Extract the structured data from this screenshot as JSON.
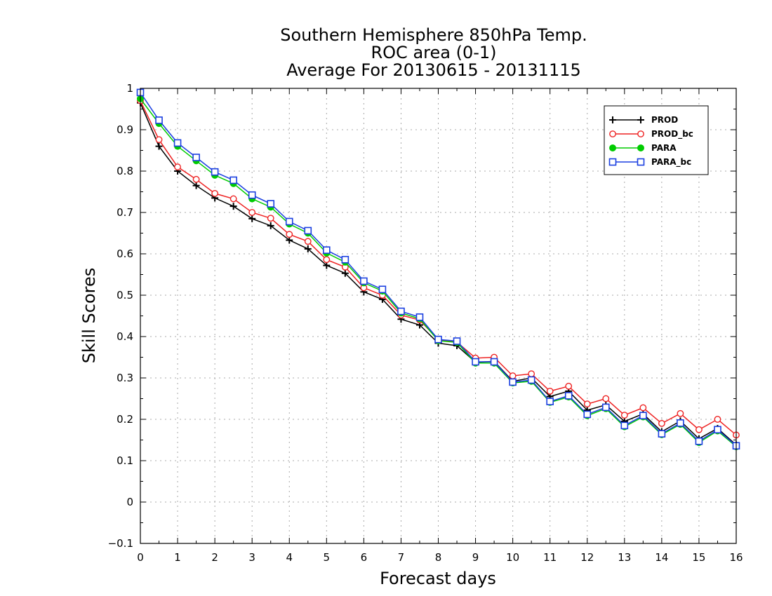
{
  "chart_data": {
    "type": "line",
    "title_lines": [
      "Southern Hemisphere 850hPa Temp.",
      "ROC area (0-1)",
      "Average For 20130615 - 20131115"
    ],
    "xlabel": "Forecast days",
    "ylabel": "Skill Scores",
    "xlim": [
      0,
      16
    ],
    "ylim": [
      -0.1,
      1
    ],
    "xticks": [
      "0",
      "1",
      "2",
      "3",
      "4",
      "5",
      "6",
      "7",
      "8",
      "9",
      "10",
      "11",
      "12",
      "13",
      "14",
      "15",
      "16"
    ],
    "yticks": [
      "−0.1",
      "0",
      "0.1",
      "0.2",
      "0.3",
      "0.4",
      "0.5",
      "0.6",
      "0.7",
      "0.8",
      "0.9",
      "1"
    ],
    "grid": true,
    "legend_position": "top-right",
    "x": [
      0,
      0.5,
      1,
      1.5,
      2,
      2.5,
      3,
      3.5,
      4,
      4.5,
      5,
      5.5,
      6,
      6.5,
      7,
      7.5,
      8,
      8.5,
      9,
      9.5,
      10,
      10.5,
      11,
      11.5,
      12,
      12.5,
      13,
      13.5,
      14,
      14.5,
      15,
      15.5,
      16
    ],
    "series": [
      {
        "name": "PROD",
        "color": "#000000",
        "marker": "plus",
        "values": [
          0.965,
          0.86,
          0.8,
          0.765,
          0.735,
          0.715,
          0.685,
          0.668,
          0.633,
          0.612,
          0.572,
          0.553,
          0.508,
          0.49,
          0.442,
          0.428,
          0.384,
          0.378,
          0.338,
          0.34,
          0.292,
          0.3,
          0.255,
          0.268,
          0.222,
          0.235,
          0.195,
          0.213,
          0.17,
          0.196,
          0.153,
          0.178,
          0.138
        ]
      },
      {
        "name": "PROD_bc",
        "color": "#ee2222",
        "marker": "circle",
        "values": [
          0.97,
          0.876,
          0.81,
          0.78,
          0.746,
          0.733,
          0.7,
          0.686,
          0.647,
          0.63,
          0.586,
          0.568,
          0.518,
          0.5,
          0.452,
          0.44,
          0.392,
          0.387,
          0.348,
          0.35,
          0.305,
          0.31,
          0.268,
          0.28,
          0.237,
          0.25,
          0.21,
          0.228,
          0.19,
          0.214,
          0.175,
          0.2,
          0.162
        ]
      },
      {
        "name": "PARA",
        "color": "#00cc00",
        "marker": "filled-circle",
        "values": [
          0.975,
          0.915,
          0.86,
          0.825,
          0.79,
          0.77,
          0.733,
          0.713,
          0.672,
          0.65,
          0.602,
          0.58,
          0.53,
          0.51,
          0.457,
          0.443,
          0.39,
          0.386,
          0.336,
          0.336,
          0.288,
          0.292,
          0.241,
          0.254,
          0.209,
          0.226,
          0.182,
          0.206,
          0.163,
          0.188,
          0.144,
          0.172,
          0.134
        ]
      },
      {
        "name": "PARA_bc",
        "color": "#1a3fe0",
        "marker": "square",
        "values": [
          0.99,
          0.923,
          0.868,
          0.833,
          0.798,
          0.778,
          0.742,
          0.721,
          0.678,
          0.656,
          0.609,
          0.586,
          0.534,
          0.514,
          0.461,
          0.447,
          0.393,
          0.389,
          0.339,
          0.339,
          0.29,
          0.295,
          0.243,
          0.257,
          0.212,
          0.229,
          0.185,
          0.209,
          0.165,
          0.191,
          0.147,
          0.175,
          0.136
        ]
      }
    ]
  }
}
